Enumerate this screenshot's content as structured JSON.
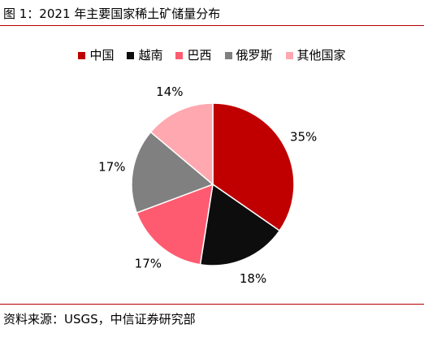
{
  "header": {
    "title": "图 1：2021 年主要国家稀土矿储量分布"
  },
  "footer": {
    "source": "资料来源：USGS，中信证券研究部"
  },
  "chart_data": {
    "type": "pie",
    "title": "",
    "legend_position": "top",
    "categories": [
      "中国",
      "越南",
      "巴西",
      "俄罗斯",
      "其他国家"
    ],
    "values": [
      35,
      18,
      17,
      17,
      14
    ],
    "labels": [
      "35%",
      "18%",
      "17%",
      "17%",
      "14%"
    ],
    "colors": [
      "#c00000",
      "#0d0d0d",
      "#ff5b70",
      "#808080",
      "#ffa8b0"
    ],
    "start_angle_deg": 0,
    "direction": "clockwise"
  }
}
